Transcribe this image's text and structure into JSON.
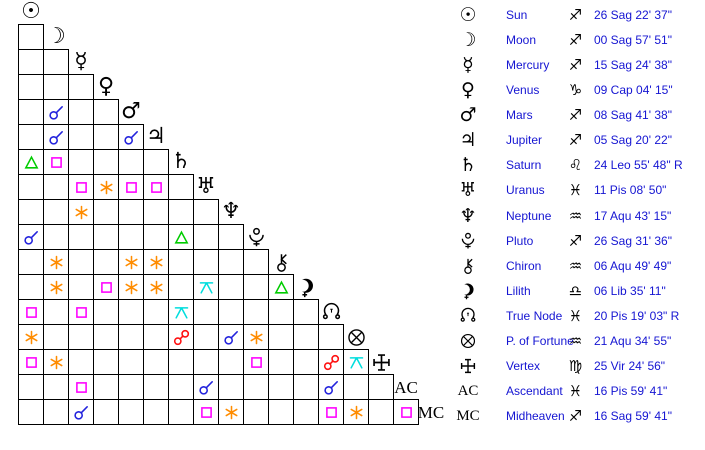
{
  "colors": {
    "text": "#1515d2",
    "conjunction": "#2222dd",
    "sextile": "#ff8c00",
    "square": "#ff00ff",
    "trine": "#00cc00",
    "opposition": "#ff1111",
    "quincunx": "#00dddd",
    "glyph": "#000000",
    "grid_line": "#000000"
  },
  "planets": [
    {
      "name": "Sun",
      "glyph": "sun",
      "sign_glyph": "sagittarius",
      "position": "26 Sag 22' 37\""
    },
    {
      "name": "Moon",
      "glyph": "moon",
      "sign_glyph": "sagittarius",
      "position": "00 Sag 57' 51\""
    },
    {
      "name": "Mercury",
      "glyph": "mercury",
      "sign_glyph": "sagittarius",
      "position": "15 Sag 24' 38\""
    },
    {
      "name": "Venus",
      "glyph": "venus",
      "sign_glyph": "capricorn",
      "position": "09 Cap 04' 15\""
    },
    {
      "name": "Mars",
      "glyph": "mars",
      "sign_glyph": "sagittarius",
      "position": "08 Sag 41' 38\""
    },
    {
      "name": "Jupiter",
      "glyph": "jupiter",
      "sign_glyph": "sagittarius",
      "position": "05 Sag 20' 22\""
    },
    {
      "name": "Saturn",
      "glyph": "saturn",
      "sign_glyph": "leo",
      "position": "24 Leo 55' 48\" R"
    },
    {
      "name": "Uranus",
      "glyph": "uranus",
      "sign_glyph": "pisces",
      "position": "11 Pis 08' 50\""
    },
    {
      "name": "Neptune",
      "glyph": "neptune",
      "sign_glyph": "aquarius",
      "position": "17 Aqu 43' 15\""
    },
    {
      "name": "Pluto",
      "glyph": "pluto",
      "sign_glyph": "sagittarius",
      "position": "26 Sag 31' 36\""
    },
    {
      "name": "Chiron",
      "glyph": "chiron",
      "sign_glyph": "aquarius",
      "position": "06 Aqu 49' 49\""
    },
    {
      "name": "Lilith",
      "glyph": "lilith",
      "sign_glyph": "libra",
      "position": "06 Lib 35' 11\""
    },
    {
      "name": "True Node",
      "glyph": "true-node",
      "sign_glyph": "pisces",
      "position": "20 Pis 19' 03\" R"
    },
    {
      "name": "P. of Fortune",
      "glyph": "fortune",
      "sign_glyph": "aquarius",
      "position": "21 Aqu 34' 55\""
    },
    {
      "name": "Vertex",
      "glyph": "vertex",
      "sign_glyph": "virgo",
      "position": "25 Vir 24' 56\""
    },
    {
      "name": "Ascendant",
      "glyph": "ascendant",
      "sign_glyph": "pisces",
      "position": "16 Pis 59' 41\"",
      "abbr": "AC"
    },
    {
      "name": "Midheaven",
      "glyph": "midheaven",
      "sign_glyph": "sagittarius",
      "position": "16 Sag 59' 41\"",
      "abbr": "MC"
    }
  ],
  "aspects": [
    {
      "row": "Mars",
      "col": "Moon",
      "type": "conjunction"
    },
    {
      "row": "Jupiter",
      "col": "Moon",
      "type": "conjunction"
    },
    {
      "row": "Jupiter",
      "col": "Mars",
      "type": "conjunction"
    },
    {
      "row": "Saturn",
      "col": "Sun",
      "type": "trine"
    },
    {
      "row": "Saturn",
      "col": "Moon",
      "type": "square"
    },
    {
      "row": "Uranus",
      "col": "Mercury",
      "type": "square"
    },
    {
      "row": "Uranus",
      "col": "Venus",
      "type": "sextile"
    },
    {
      "row": "Uranus",
      "col": "Mars",
      "type": "square"
    },
    {
      "row": "Uranus",
      "col": "Jupiter",
      "type": "square"
    },
    {
      "row": "Neptune",
      "col": "Mercury",
      "type": "sextile"
    },
    {
      "row": "Pluto",
      "col": "Sun",
      "type": "conjunction"
    },
    {
      "row": "Pluto",
      "col": "Saturn",
      "type": "trine"
    },
    {
      "row": "Chiron",
      "col": "Moon",
      "type": "sextile"
    },
    {
      "row": "Chiron",
      "col": "Mars",
      "type": "sextile"
    },
    {
      "row": "Chiron",
      "col": "Jupiter",
      "type": "sextile"
    },
    {
      "row": "Lilith",
      "col": "Moon",
      "type": "sextile"
    },
    {
      "row": "Lilith",
      "col": "Venus",
      "type": "square"
    },
    {
      "row": "Lilith",
      "col": "Mars",
      "type": "sextile"
    },
    {
      "row": "Lilith",
      "col": "Jupiter",
      "type": "sextile"
    },
    {
      "row": "Lilith",
      "col": "Uranus",
      "type": "quincunx"
    },
    {
      "row": "Lilith",
      "col": "Chiron",
      "type": "trine"
    },
    {
      "row": "True Node",
      "col": "Sun",
      "type": "square"
    },
    {
      "row": "True Node",
      "col": "Mercury",
      "type": "square"
    },
    {
      "row": "True Node",
      "col": "Saturn",
      "type": "quincunx"
    },
    {
      "row": "P. of Fortune",
      "col": "Sun",
      "type": "sextile"
    },
    {
      "row": "P. of Fortune",
      "col": "Saturn",
      "type": "opposition"
    },
    {
      "row": "P. of Fortune",
      "col": "Neptune",
      "type": "conjunction"
    },
    {
      "row": "P. of Fortune",
      "col": "Pluto",
      "type": "sextile"
    },
    {
      "row": "Vertex",
      "col": "Sun",
      "type": "square"
    },
    {
      "row": "Vertex",
      "col": "Moon",
      "type": "sextile"
    },
    {
      "row": "Vertex",
      "col": "Pluto",
      "type": "square"
    },
    {
      "row": "Vertex",
      "col": "True Node",
      "type": "opposition"
    },
    {
      "row": "Vertex",
      "col": "P. of Fortune",
      "type": "quincunx"
    },
    {
      "row": "Ascendant",
      "col": "Mercury",
      "type": "square"
    },
    {
      "row": "Ascendant",
      "col": "Uranus",
      "type": "conjunction"
    },
    {
      "row": "Ascendant",
      "col": "True Node",
      "type": "conjunction"
    },
    {
      "row": "Midheaven",
      "col": "Mercury",
      "type": "conjunction"
    },
    {
      "row": "Midheaven",
      "col": "Uranus",
      "type": "square"
    },
    {
      "row": "Midheaven",
      "col": "Neptune",
      "type": "sextile"
    },
    {
      "row": "Midheaven",
      "col": "True Node",
      "type": "square"
    },
    {
      "row": "Midheaven",
      "col": "P. of Fortune",
      "type": "sextile"
    },
    {
      "row": "Midheaven",
      "col": "Ascendant",
      "type": "square"
    }
  ]
}
